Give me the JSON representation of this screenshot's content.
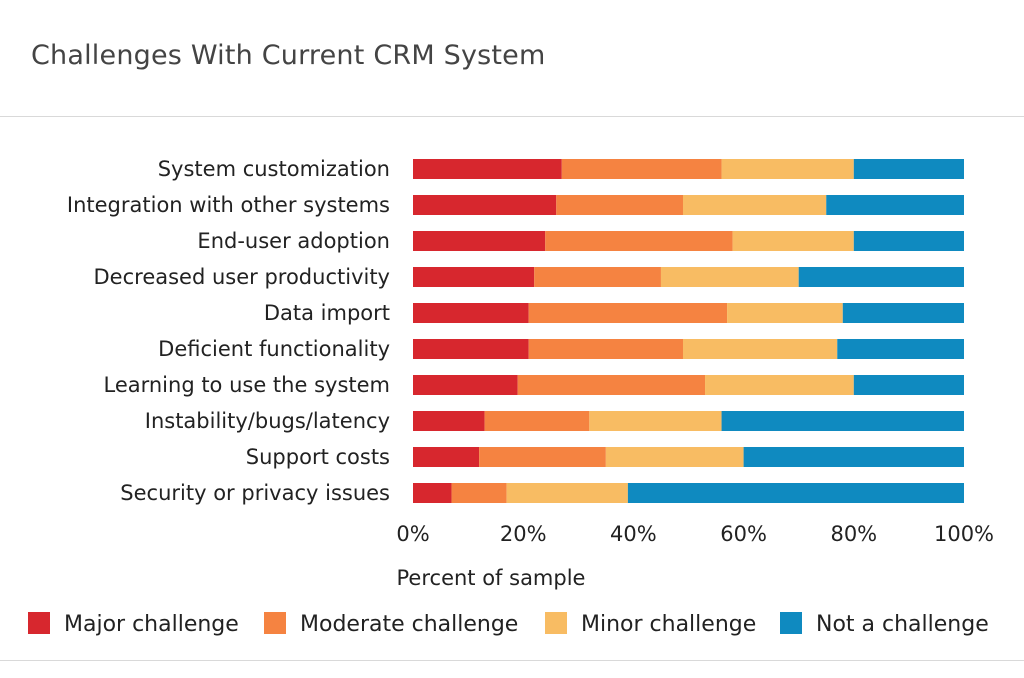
{
  "header": {
    "title": "Challenges With Current CRM System"
  },
  "chart_data": {
    "type": "bar",
    "orientation": "horizontal",
    "stacked": true,
    "title": "Challenges With Current CRM System",
    "xlabel": "Percent of sample",
    "ylabel": "",
    "xlim": [
      0,
      100
    ],
    "x_ticks": [
      "0%",
      "20%",
      "40%",
      "60%",
      "80%",
      "100%"
    ],
    "grid": false,
    "legend_position": "bottom",
    "categories": [
      "System customization",
      "Integration with other systems",
      "End-user adoption",
      "Decreased user productivity",
      "Data import",
      "Deficient functionality",
      "Learning to use the system",
      "Instability/bugs/latency",
      "Support costs",
      "Security or privacy issues"
    ],
    "series": [
      {
        "name": "Major challenge",
        "color": "#d7272e",
        "values": [
          27,
          26,
          24,
          22,
          21,
          21,
          19,
          13,
          12,
          7
        ]
      },
      {
        "name": "Moderate challenge",
        "color": "#f58341",
        "values": [
          29,
          23,
          34,
          23,
          36,
          28,
          34,
          19,
          23,
          10
        ]
      },
      {
        "name": "Minor challenge",
        "color": "#f8bc63",
        "values": [
          24,
          26,
          22,
          25,
          21,
          28,
          27,
          24,
          25,
          22
        ]
      },
      {
        "name": "Not a challenge",
        "color": "#0f8ac0",
        "values": [
          20,
          25,
          20,
          30,
          22,
          23,
          20,
          44,
          40,
          61
        ]
      }
    ]
  }
}
